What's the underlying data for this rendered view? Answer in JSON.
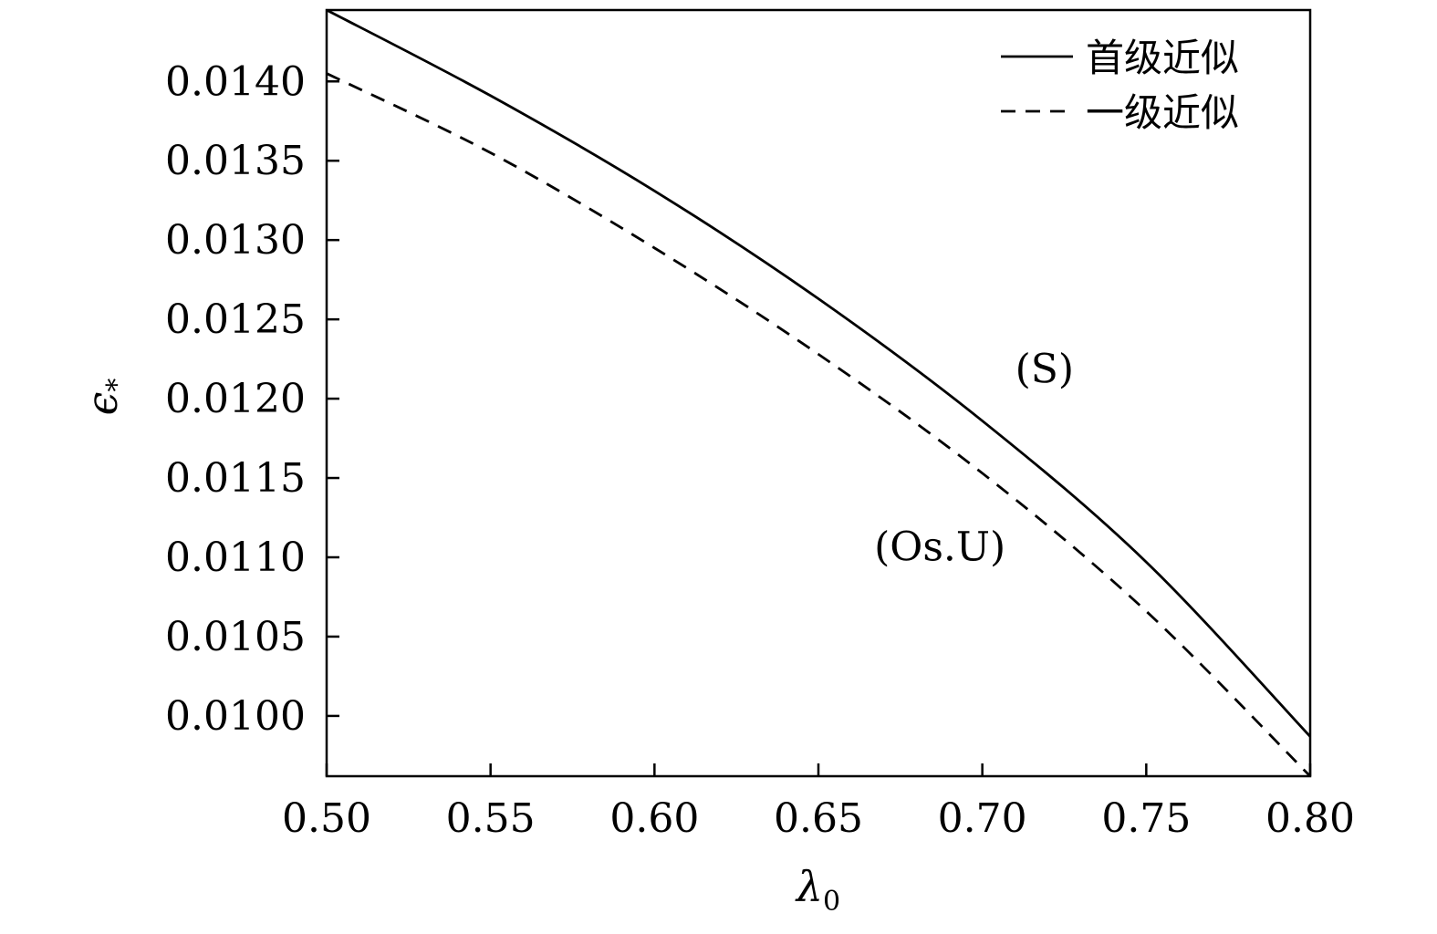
{
  "chart_data": {
    "type": "line",
    "title": "",
    "xlabel": "λ",
    "xlabel_sub": "0",
    "ylabel": "ϵ",
    "ylabel_sub": "*",
    "xlim": [
      0.5,
      0.8
    ],
    "ylim": [
      0.00962,
      0.01445
    ],
    "xticks": [
      0.5,
      0.55,
      0.6,
      0.65,
      0.7,
      0.75,
      0.8
    ],
    "xtick_labels": [
      "0.50",
      "0.55",
      "0.60",
      "0.65",
      "0.70",
      "0.75",
      "0.80"
    ],
    "yticks": [
      0.01,
      0.0105,
      0.011,
      0.0115,
      0.012,
      0.0125,
      0.013,
      0.0135,
      0.014
    ],
    "ytick_labels": [
      "0.0100",
      "0.0105",
      "0.0110",
      "0.0115",
      "0.0120",
      "0.0125",
      "0.0130",
      "0.0135",
      "0.0140"
    ],
    "grid": false,
    "legend_position": "top-right",
    "series": [
      {
        "name": "首级近似",
        "style": "solid",
        "color": "#000000",
        "x": [
          0.5,
          0.55,
          0.6,
          0.65,
          0.7,
          0.75,
          0.8
        ],
        "y": [
          0.01445,
          0.01391,
          0.01331,
          0.01263,
          0.01186,
          0.01097,
          0.00987
        ]
      },
      {
        "name": "一级近似",
        "style": "dashed",
        "color": "#000000",
        "x": [
          0.5,
          0.55,
          0.6,
          0.65,
          0.7,
          0.75,
          0.8
        ],
        "y": [
          0.01405,
          0.01355,
          0.01295,
          0.01228,
          0.01153,
          0.01066,
          0.00962
        ]
      }
    ],
    "annotations": [
      {
        "text": "(S)",
        "x": 0.71,
        "y": 0.0121
      },
      {
        "text": "(Os.U)",
        "x": 0.667,
        "y": 0.01098
      }
    ]
  }
}
